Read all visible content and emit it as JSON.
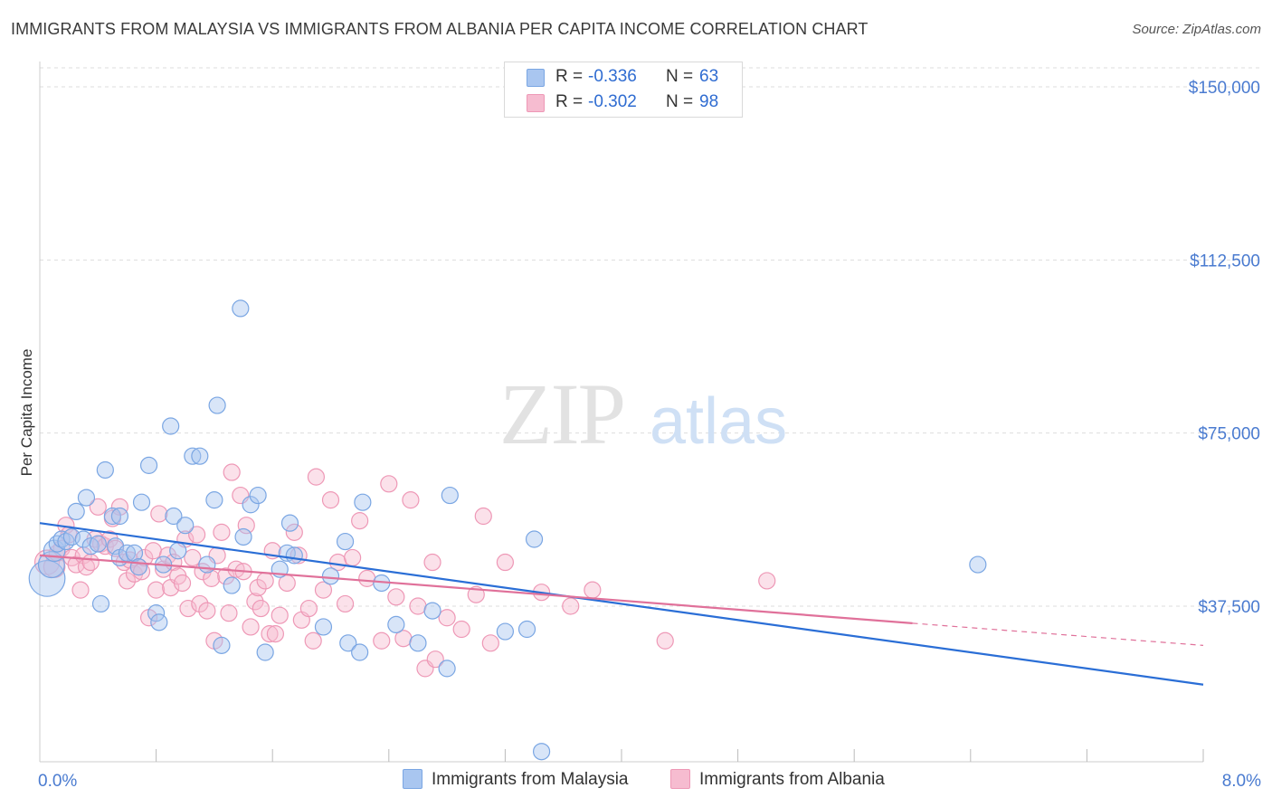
{
  "title": "IMMIGRANTS FROM MALAYSIA VS IMMIGRANTS FROM ALBANIA PER CAPITA INCOME CORRELATION CHART",
  "source": "Source: ZipAtlas.com",
  "watermark": {
    "zip": "ZIP",
    "atlas": "atlas"
  },
  "colors": {
    "malaysia_fill": "#a9c6f0",
    "malaysia_stroke": "#7aa6e3",
    "malaysia_line": "#2a6ed6",
    "albania_fill": "#f6bcd0",
    "albania_stroke": "#ee98b6",
    "albania_line": "#e0719a",
    "tick_text": "#4a7bd0",
    "grid": "#dddddd"
  },
  "legend": {
    "malaysia": {
      "r_label": "R = ",
      "r_value": "-0.336",
      "n_label": "N = ",
      "n_value": "63"
    },
    "albania": {
      "r_label": "R = ",
      "r_value": "-0.302",
      "n_label": "N = ",
      "n_value": "98"
    }
  },
  "chart_data": {
    "type": "scatter",
    "title": "IMMIGRANTS FROM MALAYSIA VS IMMIGRANTS FROM ALBANIA PER CAPITA INCOME CORRELATION CHART",
    "xlabel": "",
    "ylabel": "Per Capita Income",
    "xlim": [
      0,
      8
    ],
    "ylim": [
      0,
      155000
    ],
    "x_tick_labels": [
      "0.0%",
      "8.0%"
    ],
    "y_ticks": [
      {
        "value": 37500,
        "label": "$37,500"
      },
      {
        "value": 75000,
        "label": "$75,000"
      },
      {
        "value": 112500,
        "label": "$112,500"
      },
      {
        "value": 150000,
        "label": "$150,000"
      }
    ],
    "series": [
      {
        "name": "Immigrants from Malaysia",
        "r": -0.336,
        "n": 63,
        "trend": {
          "x0": 0,
          "y0": 55500,
          "x1": 8,
          "y1": 20500
        },
        "points": [
          [
            0.05,
            43500,
            2.2
          ],
          [
            0.08,
            46500,
            1.6
          ],
          [
            0.1,
            49500,
            1.3
          ],
          [
            0.12,
            51000,
            1
          ],
          [
            0.15,
            52000,
            1
          ],
          [
            0.18,
            51500,
            1
          ],
          [
            0.22,
            52500,
            1
          ],
          [
            0.25,
            58000,
            1
          ],
          [
            0.3,
            52000,
            1
          ],
          [
            0.32,
            61000,
            1
          ],
          [
            0.35,
            50500,
            1
          ],
          [
            0.4,
            51000,
            1
          ],
          [
            0.42,
            38000,
            1
          ],
          [
            0.45,
            67000,
            1
          ],
          [
            0.5,
            57000,
            1
          ],
          [
            0.52,
            50500,
            1
          ],
          [
            0.55,
            57000,
            1
          ],
          [
            0.55,
            48000,
            1
          ],
          [
            0.6,
            49000,
            1
          ],
          [
            0.65,
            49000,
            1
          ],
          [
            0.68,
            46000,
            1
          ],
          [
            0.7,
            60000,
            1
          ],
          [
            0.75,
            68000,
            1
          ],
          [
            0.8,
            36000,
            1
          ],
          [
            0.82,
            34000,
            1
          ],
          [
            0.85,
            46500,
            1
          ],
          [
            0.9,
            76500,
            1
          ],
          [
            0.92,
            57000,
            1
          ],
          [
            0.95,
            49500,
            1
          ],
          [
            1.0,
            55000,
            1
          ],
          [
            1.05,
            70000,
            1
          ],
          [
            1.1,
            70000,
            1
          ],
          [
            1.15,
            46500,
            1
          ],
          [
            1.2,
            60500,
            1
          ],
          [
            1.22,
            81000,
            1
          ],
          [
            1.25,
            29000,
            1
          ],
          [
            1.32,
            42000,
            1
          ],
          [
            1.38,
            102000,
            1
          ],
          [
            1.4,
            52500,
            1
          ],
          [
            1.45,
            59500,
            1
          ],
          [
            1.5,
            61500,
            1
          ],
          [
            1.55,
            27500,
            1
          ],
          [
            1.65,
            45500,
            1
          ],
          [
            1.7,
            49000,
            1
          ],
          [
            1.72,
            55500,
            1
          ],
          [
            1.75,
            48500,
            1
          ],
          [
            1.95,
            33000,
            1
          ],
          [
            2.0,
            44000,
            1
          ],
          [
            2.1,
            51500,
            1
          ],
          [
            2.12,
            29500,
            1
          ],
          [
            2.2,
            27500,
            1
          ],
          [
            2.22,
            60000,
            1
          ],
          [
            2.35,
            42500,
            1
          ],
          [
            2.45,
            33500,
            1
          ],
          [
            2.6,
            29500,
            1
          ],
          [
            2.7,
            36500,
            1
          ],
          [
            2.8,
            24000,
            1
          ],
          [
            2.82,
            61500,
            1
          ],
          [
            3.2,
            32000,
            1
          ],
          [
            3.35,
            32500,
            1
          ],
          [
            3.4,
            52000,
            1
          ],
          [
            3.45,
            6000,
            1
          ],
          [
            6.45,
            46500,
            1
          ]
        ]
      },
      {
        "name": "Immigrants from Albania",
        "r": -0.302,
        "n": 98,
        "trend": {
          "x0": 0,
          "y0": 48500,
          "x1": 6.0,
          "y1": 33800,
          "dash_x1": 8.0,
          "dash_y1": 29000
        },
        "points": [
          [
            0.05,
            47000,
            1.5
          ],
          [
            0.1,
            46000,
            1.3
          ],
          [
            0.12,
            49000,
            1
          ],
          [
            0.15,
            50000,
            1
          ],
          [
            0.18,
            55000,
            1
          ],
          [
            0.2,
            53000,
            1
          ],
          [
            0.22,
            48000,
            1
          ],
          [
            0.25,
            46500,
            1
          ],
          [
            0.28,
            41000,
            1
          ],
          [
            0.3,
            48500,
            1
          ],
          [
            0.32,
            46000,
            1
          ],
          [
            0.35,
            47000,
            1
          ],
          [
            0.38,
            52000,
            1
          ],
          [
            0.4,
            59000,
            1
          ],
          [
            0.42,
            51000,
            1
          ],
          [
            0.45,
            50500,
            1
          ],
          [
            0.48,
            52000,
            1
          ],
          [
            0.5,
            56500,
            1
          ],
          [
            0.52,
            50000,
            1
          ],
          [
            0.55,
            59000,
            1
          ],
          [
            0.58,
            47000,
            1
          ],
          [
            0.6,
            43000,
            1
          ],
          [
            0.62,
            47500,
            1
          ],
          [
            0.65,
            44500,
            1
          ],
          [
            0.68,
            46000,
            1
          ],
          [
            0.7,
            45000,
            1
          ],
          [
            0.72,
            48000,
            1
          ],
          [
            0.75,
            35000,
            1
          ],
          [
            0.78,
            49500,
            1
          ],
          [
            0.8,
            41000,
            1
          ],
          [
            0.82,
            57500,
            1
          ],
          [
            0.85,
            45500,
            1
          ],
          [
            0.88,
            48500,
            1
          ],
          [
            0.9,
            41500,
            1
          ],
          [
            0.92,
            47000,
            1
          ],
          [
            0.95,
            44000,
            1
          ],
          [
            0.98,
            42500,
            1
          ],
          [
            1.0,
            52000,
            1
          ],
          [
            1.02,
            37000,
            1
          ],
          [
            1.05,
            48000,
            1
          ],
          [
            1.08,
            53000,
            1
          ],
          [
            1.1,
            38000,
            1
          ],
          [
            1.12,
            45000,
            1
          ],
          [
            1.15,
            36500,
            1
          ],
          [
            1.18,
            43500,
            1
          ],
          [
            1.2,
            30000,
            1
          ],
          [
            1.22,
            48500,
            1
          ],
          [
            1.25,
            53500,
            1
          ],
          [
            1.28,
            44000,
            1
          ],
          [
            1.3,
            36000,
            1
          ],
          [
            1.32,
            66500,
            1
          ],
          [
            1.35,
            45500,
            1
          ],
          [
            1.38,
            61500,
            1
          ],
          [
            1.4,
            45000,
            1
          ],
          [
            1.42,
            55000,
            1
          ],
          [
            1.45,
            33000,
            1
          ],
          [
            1.48,
            38500,
            1
          ],
          [
            1.5,
            41500,
            1
          ],
          [
            1.52,
            37000,
            1
          ],
          [
            1.55,
            43000,
            1
          ],
          [
            1.58,
            31500,
            1
          ],
          [
            1.6,
            49500,
            1
          ],
          [
            1.62,
            31500,
            1
          ],
          [
            1.65,
            35500,
            1
          ],
          [
            1.7,
            42500,
            1
          ],
          [
            1.75,
            53500,
            1
          ],
          [
            1.78,
            48500,
            1
          ],
          [
            1.8,
            34500,
            1
          ],
          [
            1.85,
            37000,
            1
          ],
          [
            1.88,
            30000,
            1
          ],
          [
            1.9,
            65500,
            1
          ],
          [
            1.95,
            41000,
            1
          ],
          [
            2.0,
            60500,
            1
          ],
          [
            2.05,
            47000,
            1
          ],
          [
            2.1,
            38000,
            1
          ],
          [
            2.15,
            48000,
            1
          ],
          [
            2.2,
            56000,
            1
          ],
          [
            2.25,
            43500,
            1
          ],
          [
            2.35,
            30000,
            1
          ],
          [
            2.4,
            64000,
            1
          ],
          [
            2.45,
            39500,
            1
          ],
          [
            2.5,
            30500,
            1
          ],
          [
            2.55,
            60500,
            1
          ],
          [
            2.6,
            37500,
            1
          ],
          [
            2.65,
            24000,
            1
          ],
          [
            2.7,
            47000,
            1
          ],
          [
            2.72,
            26000,
            1
          ],
          [
            2.8,
            35000,
            1
          ],
          [
            2.9,
            32500,
            1
          ],
          [
            3.0,
            40000,
            1
          ],
          [
            3.05,
            57000,
            1
          ],
          [
            3.1,
            29500,
            1
          ],
          [
            3.2,
            47000,
            1
          ],
          [
            3.45,
            40500,
            1
          ],
          [
            3.65,
            37500,
            1
          ],
          [
            3.8,
            41000,
            1
          ],
          [
            4.3,
            30000,
            1
          ],
          [
            5.0,
            43000,
            1
          ]
        ]
      }
    ]
  },
  "legend_bottom": {
    "malaysia": "Immigrants from Malaysia",
    "albania": "Immigrants from Albania"
  }
}
